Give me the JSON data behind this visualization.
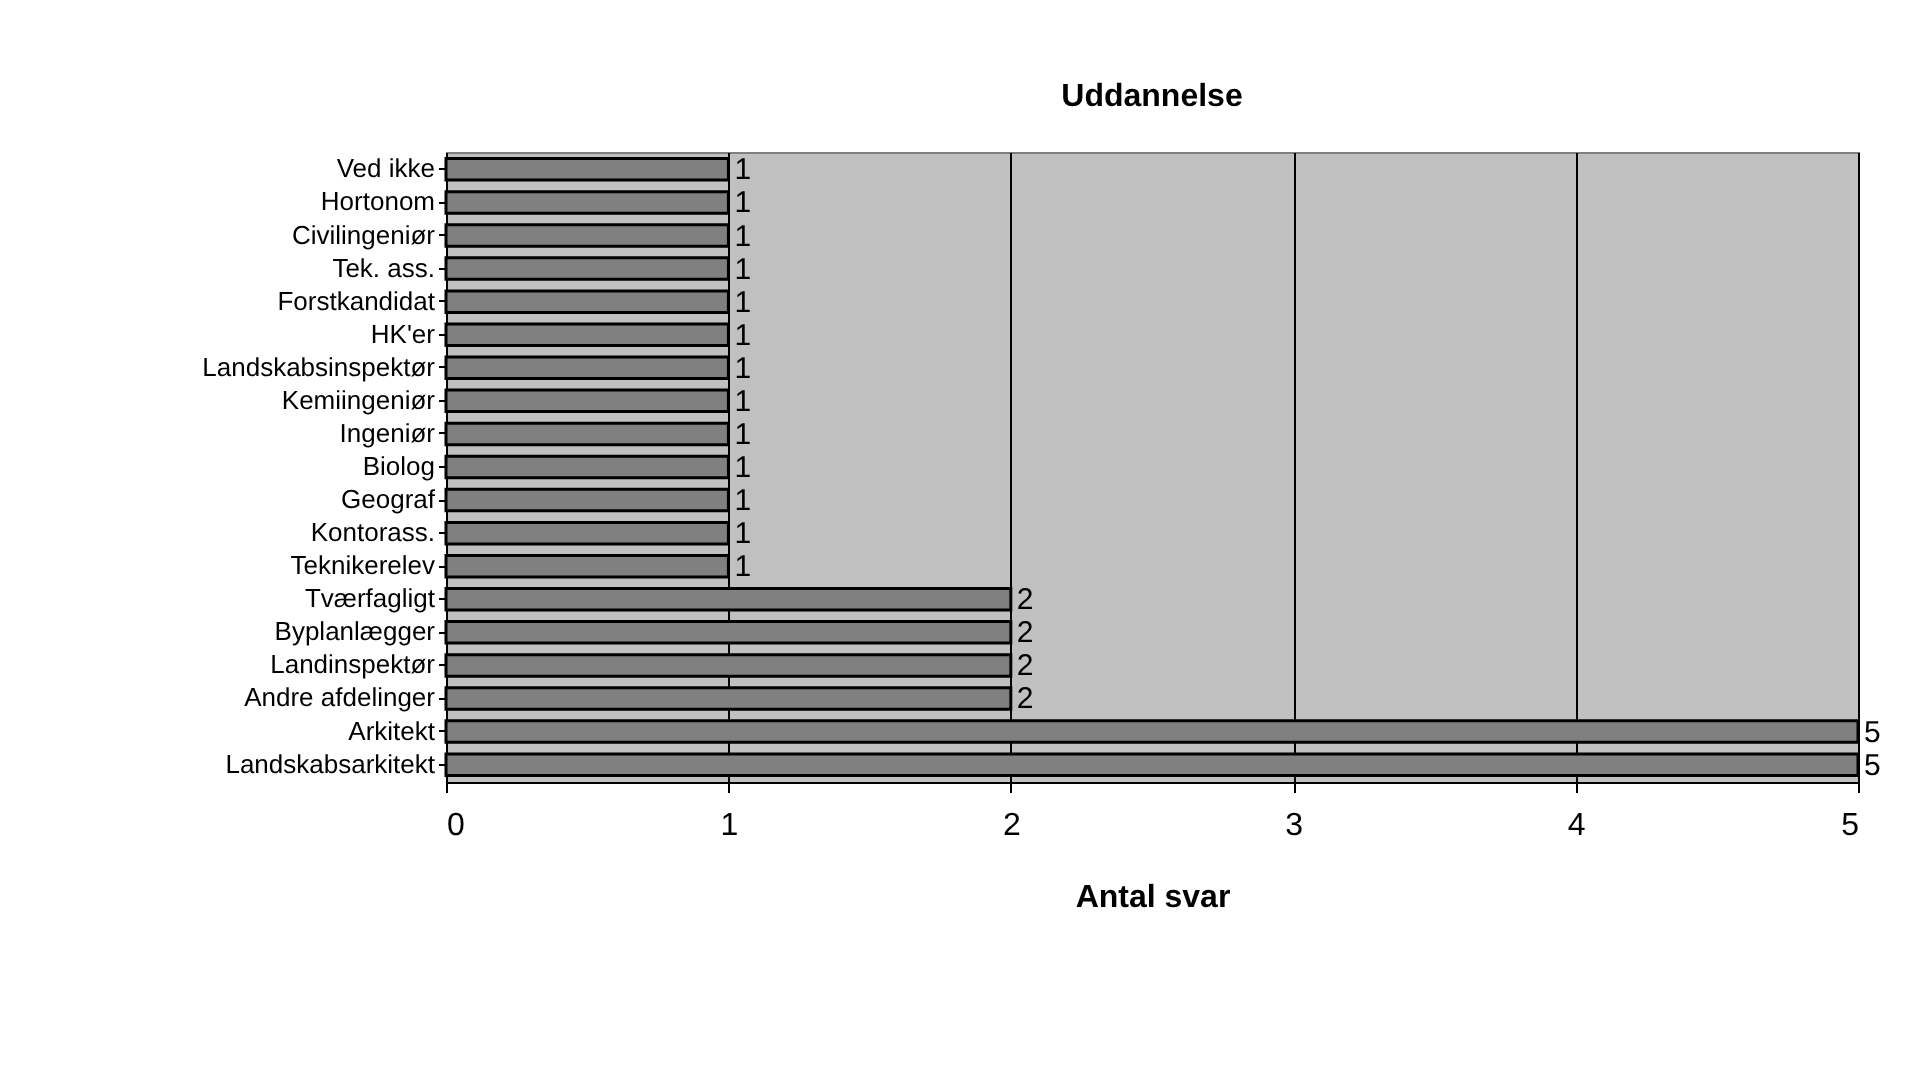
{
  "chart_data": {
    "type": "bar",
    "orientation": "horizontal",
    "title": "Uddannelse",
    "xlabel": "Antal svar",
    "categories": [
      "Ved ikke",
      "Hortonom",
      "Civilingeniør",
      "Tek. ass.",
      "Forstkandidat",
      "HK'er",
      "Landskabsinspektør",
      "Kemiingeniør",
      "Ingeniør",
      "Biolog",
      "Geograf",
      "Kontorass.",
      "Teknikerelev",
      "Tværfagligt",
      "Byplanlægger",
      "Landinspektør",
      "Andre afdelinger",
      "Arkitekt",
      "Landskabsarkitekt"
    ],
    "values": [
      1,
      1,
      1,
      1,
      1,
      1,
      1,
      1,
      1,
      1,
      1,
      1,
      1,
      2,
      2,
      2,
      2,
      5,
      5
    ],
    "color": "#808080",
    "xlim": [
      0,
      5
    ],
    "xticks": [
      0,
      1,
      2,
      3,
      4,
      5
    ],
    "grid": "x",
    "data_labels": true
  }
}
